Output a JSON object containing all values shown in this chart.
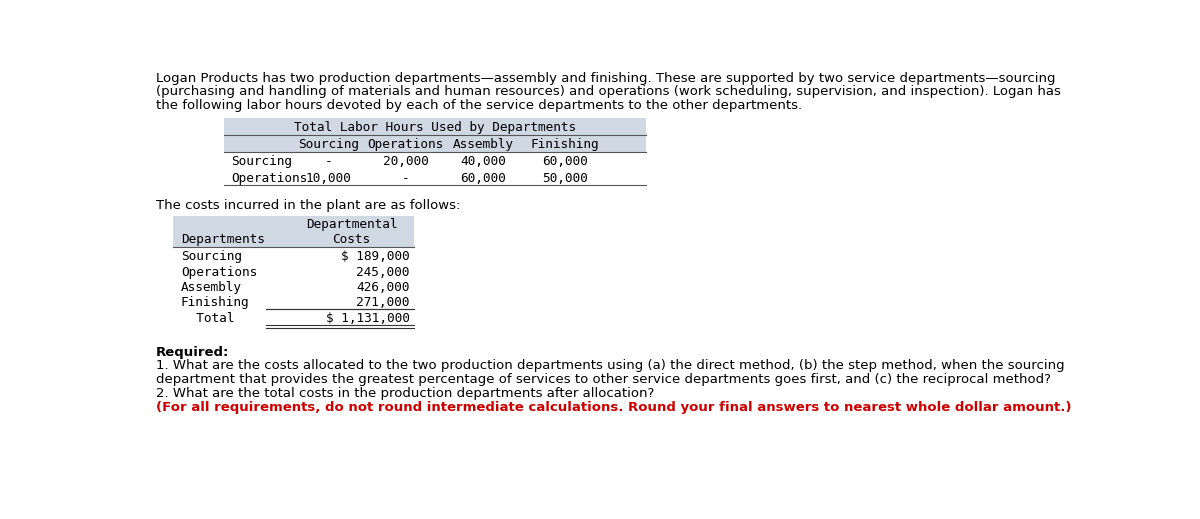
{
  "intro_text": "Logan Products has two production departments—assembly and finishing. These are supported by two service departments—sourcing\n(purchasing and handling of materials and human resources) and operations (work scheduling, supervision, and inspection). Logan has\nthe following labor hours devoted by each of the service departments to the other departments.",
  "table1_title": "Total Labor Hours Used by Departments",
  "table1_col_headers": [
    "Sourcing",
    "Operations",
    "Assembly",
    "Finishing"
  ],
  "table1_row_headers": [
    "Sourcing",
    "Operations"
  ],
  "table1_data": [
    [
      "-",
      "20,000",
      "40,000",
      "60,000"
    ],
    [
      "10,000",
      "-",
      "60,000",
      "50,000"
    ]
  ],
  "costs_intro": "The costs incurred in the plant are as follows:",
  "table2_col_header2_line1": "Departmental",
  "table2_col_header2_line2": "Costs",
  "table2_col_header1": "Departments",
  "table2_rows": [
    [
      "Sourcing",
      "$ 189,000"
    ],
    [
      "Operations",
      "245,000"
    ],
    [
      "Assembly",
      "426,000"
    ],
    [
      "Finishing",
      "271,000"
    ],
    [
      "  Total",
      "$ 1,131,000"
    ]
  ],
  "required_label": "Required:",
  "required_text1": "1. What are the costs allocated to the two production departments using (a) the direct method, (b) the step method, when the sourcing",
  "required_text2": "department that provides the greatest percentage of services to other service departments goes first, and (c) the reciprocal method?",
  "required_text3": "2. What are the total costs in the production departments after allocation?",
  "required_text4": "(For all requirements, do not round intermediate calculations. Round your final answers to nearest whole dollar amount.)",
  "bg_color": "#ffffff",
  "table1_bg": "#d0d8e4",
  "table2_hdr_bg": "#d0d8e4",
  "text_color": "#000000",
  "red_color": "#cc0000",
  "line_color": "#555555",
  "mono_font": "monospace",
  "sans_font": "DejaVu Sans",
  "intro_fontsize": 9.5,
  "table_fontsize": 9.2,
  "req_fontsize": 9.5
}
